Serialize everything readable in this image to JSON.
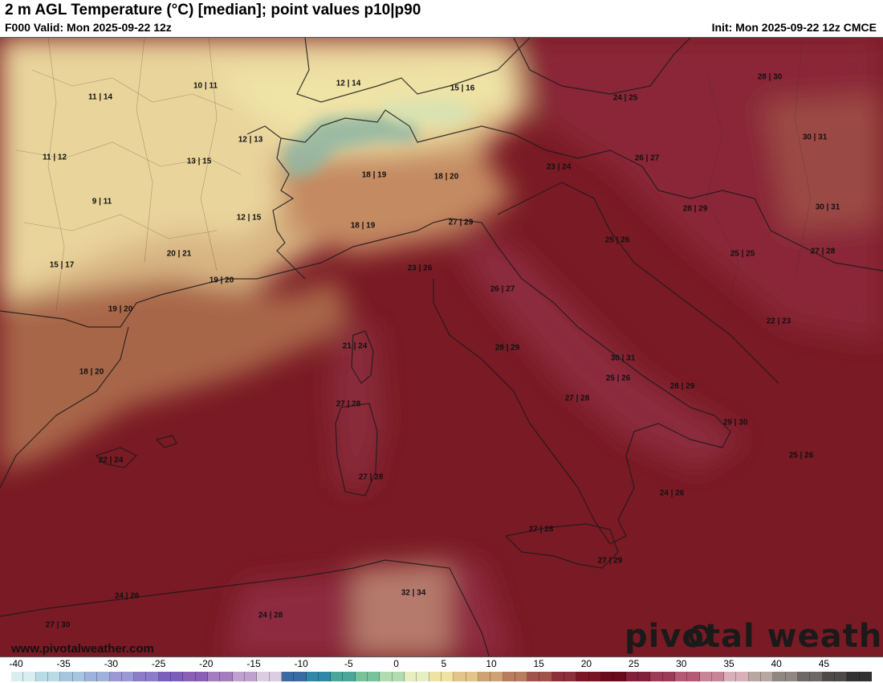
{
  "header": {
    "title": "2 m AGL Temperature (°C) [median]; point values p10|p90",
    "valid": "F000 Valid: Mon 2025-09-22 12z",
    "init": "Init: Mon 2025-09-22 12z CMCE"
  },
  "map": {
    "site": "www.pivotalweather.com",
    "logo": "pivotal weather",
    "points": [
      {
        "label": "11 | 14"
      },
      {
        "label": "10 | 11"
      },
      {
        "label": "12 | 14"
      },
      {
        "label": "15 | 16"
      },
      {
        "label": "24 | 25"
      },
      {
        "label": "28 | 30"
      },
      {
        "label": "12 | 13"
      },
      {
        "label": "11 | 12"
      },
      {
        "label": "13 | 15"
      },
      {
        "label": "30 | 31"
      },
      {
        "label": "18 | 19"
      },
      {
        "label": "18 | 20"
      },
      {
        "label": "23 | 24"
      },
      {
        "label": "26 | 27"
      },
      {
        "label": "9 | 11"
      },
      {
        "label": "12 | 15"
      },
      {
        "label": "27 | 29"
      },
      {
        "label": "28 | 29"
      },
      {
        "label": "30 | 31"
      },
      {
        "label": "18 | 19"
      },
      {
        "label": "15 | 17"
      },
      {
        "label": "20 | 21"
      },
      {
        "label": "25 | 26"
      },
      {
        "label": "25 | 25"
      },
      {
        "label": "27 | 28"
      },
      {
        "label": "19 | 20"
      },
      {
        "label": "23 | 26"
      },
      {
        "label": "26 | 27"
      },
      {
        "label": "19 | 20"
      },
      {
        "label": "22 | 23"
      },
      {
        "label": "21 | 24"
      },
      {
        "label": "28 | 29"
      },
      {
        "label": "30 | 31"
      },
      {
        "label": "18 | 20"
      },
      {
        "label": "25 | 26"
      },
      {
        "label": "28 | 29"
      },
      {
        "label": "27 | 28"
      },
      {
        "label": "27 | 28"
      },
      {
        "label": "29 | 30"
      },
      {
        "label": "22 | 24"
      },
      {
        "label": "25 | 26"
      },
      {
        "label": "27 | 28"
      },
      {
        "label": "24 | 26"
      },
      {
        "label": "27 | 28"
      },
      {
        "label": "27 | 29"
      },
      {
        "label": "32 | 34"
      },
      {
        "label": "24 | 26"
      },
      {
        "label": "24 | 28"
      },
      {
        "label": "27 | 30"
      }
    ]
  },
  "colorbar": {
    "ticks": [
      "-40",
      "-35",
      "-30",
      "-25",
      "-20",
      "-15",
      "-10",
      "-5",
      "0",
      "5",
      "10",
      "15",
      "20",
      "25",
      "30",
      "35",
      "40",
      "45"
    ],
    "colors": [
      "#d9eef0",
      "#b9dbe6",
      "#a6c6e0",
      "#9fb2dc",
      "#9b98d6",
      "#8c7cc9",
      "#7c5fbb",
      "#8a5fb5",
      "#a47cc0",
      "#bfa0cf",
      "#dccde3",
      "#3a6aa3",
      "#2f88a8",
      "#4aa79a",
      "#79c39b",
      "#b2dcb0",
      "#e6efc2",
      "#efe2a2",
      "#e3c489",
      "#cfa273",
      "#b97c5e",
      "#a1524a",
      "#8c2f38",
      "#7a1524",
      "#6a0b1b",
      "#83213a",
      "#9b3b57",
      "#b45a76",
      "#c98598",
      "#d9afba",
      "#b8a7a0",
      "#8f8782",
      "#6d6866",
      "#4d4a49",
      "#333232"
    ]
  }
}
